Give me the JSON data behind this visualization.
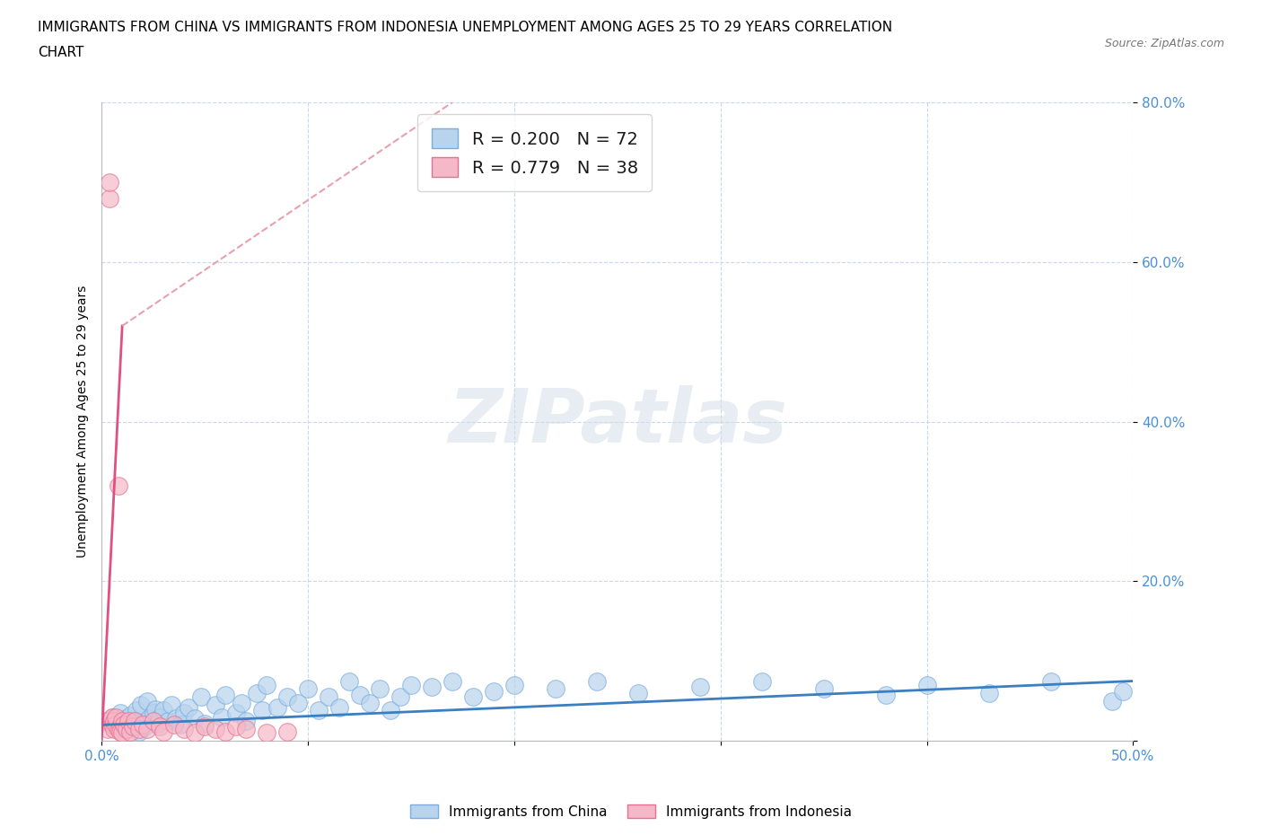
{
  "title_line1": "IMMIGRANTS FROM CHINA VS IMMIGRANTS FROM INDONESIA UNEMPLOYMENT AMONG AGES 25 TO 29 YEARS CORRELATION",
  "title_line2": "CHART",
  "source": "Source: ZipAtlas.com",
  "ylabel": "Unemployment Among Ages 25 to 29 years",
  "xlim": [
    0.0,
    0.5
  ],
  "ylim": [
    0.0,
    0.8
  ],
  "xticks": [
    0.0,
    0.1,
    0.2,
    0.3,
    0.4,
    0.5
  ],
  "yticks": [
    0.0,
    0.2,
    0.4,
    0.6,
    0.8
  ],
  "xticklabels": [
    "0.0%",
    "",
    "",
    "",
    "",
    "50.0%"
  ],
  "yticklabels": [
    "",
    "20.0%",
    "40.0%",
    "60.0%",
    "80.0%"
  ],
  "china_color": "#b8d4ed",
  "china_edge": "#7aade0",
  "indonesia_color": "#f5b8c8",
  "indonesia_edge": "#e87090",
  "trend_china_color": "#3a7fc1",
  "trend_indonesia_color": "#e05080",
  "trend_indo_dash_color": "#e8a0b0",
  "legend_label_china": "R = 0.200   N = 72",
  "legend_label_indonesia": "R = 0.779   N = 38",
  "watermark": "ZIPatlas",
  "background_color": "#ffffff",
  "grid_color": "#c8d8ee",
  "china_x": [
    0.005,
    0.007,
    0.008,
    0.009,
    0.01,
    0.011,
    0.012,
    0.013,
    0.014,
    0.015,
    0.016,
    0.017,
    0.018,
    0.019,
    0.02,
    0.021,
    0.022,
    0.023,
    0.025,
    0.026,
    0.027,
    0.028,
    0.03,
    0.032,
    0.034,
    0.036,
    0.038,
    0.04,
    0.042,
    0.045,
    0.048,
    0.05,
    0.055,
    0.058,
    0.06,
    0.065,
    0.068,
    0.07,
    0.075,
    0.078,
    0.08,
    0.085,
    0.09,
    0.095,
    0.1,
    0.105,
    0.11,
    0.115,
    0.12,
    0.125,
    0.13,
    0.135,
    0.14,
    0.145,
    0.15,
    0.16,
    0.17,
    0.18,
    0.19,
    0.2,
    0.22,
    0.24,
    0.26,
    0.29,
    0.32,
    0.35,
    0.38,
    0.4,
    0.43,
    0.46,
    0.49,
    0.495
  ],
  "china_y": [
    0.03,
    0.025,
    0.02,
    0.035,
    0.018,
    0.022,
    0.028,
    0.015,
    0.032,
    0.025,
    0.02,
    0.038,
    0.012,
    0.045,
    0.022,
    0.018,
    0.05,
    0.028,
    0.035,
    0.04,
    0.022,
    0.03,
    0.038,
    0.025,
    0.045,
    0.028,
    0.02,
    0.035,
    0.042,
    0.028,
    0.055,
    0.022,
    0.045,
    0.03,
    0.058,
    0.035,
    0.048,
    0.025,
    0.06,
    0.038,
    0.07,
    0.042,
    0.055,
    0.048,
    0.065,
    0.038,
    0.055,
    0.042,
    0.075,
    0.058,
    0.048,
    0.065,
    0.038,
    0.055,
    0.07,
    0.068,
    0.075,
    0.055,
    0.062,
    0.07,
    0.065,
    0.075,
    0.06,
    0.068,
    0.075,
    0.065,
    0.058,
    0.07,
    0.06,
    0.075,
    0.05,
    0.062
  ],
  "indonesia_x": [
    0.002,
    0.003,
    0.004,
    0.004,
    0.005,
    0.005,
    0.006,
    0.006,
    0.007,
    0.007,
    0.008,
    0.008,
    0.009,
    0.009,
    0.01,
    0.01,
    0.011,
    0.012,
    0.013,
    0.014,
    0.015,
    0.016,
    0.018,
    0.02,
    0.022,
    0.025,
    0.028,
    0.03,
    0.035,
    0.04,
    0.045,
    0.05,
    0.055,
    0.06,
    0.065,
    0.07,
    0.08,
    0.09
  ],
  "indonesia_y": [
    0.025,
    0.015,
    0.68,
    0.7,
    0.02,
    0.03,
    0.025,
    0.015,
    0.02,
    0.03,
    0.015,
    0.32,
    0.018,
    0.012,
    0.025,
    0.01,
    0.02,
    0.015,
    0.025,
    0.012,
    0.018,
    0.025,
    0.015,
    0.02,
    0.015,
    0.025,
    0.018,
    0.012,
    0.02,
    0.015,
    0.01,
    0.018,
    0.015,
    0.012,
    0.018,
    0.015,
    0.01,
    0.012
  ],
  "title_fontsize": 11,
  "axis_label_fontsize": 10,
  "tick_fontsize": 11,
  "legend_fontsize": 14
}
